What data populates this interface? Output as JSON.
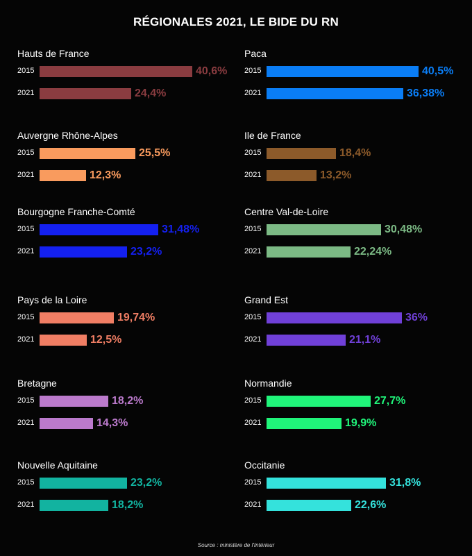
{
  "chart_data": {
    "type": "bar",
    "title": "RÉGIONALES 2021, LE BIDE DU RN",
    "source": "Source : ministère de l'Intérieur",
    "series_labels": [
      "2015",
      "2021"
    ],
    "xlim": [
      0,
      40.6
    ],
    "regions": [
      {
        "name": "Hauts de France",
        "color": "#8a3c40",
        "values": [
          40.6,
          24.4
        ],
        "labels": [
          "40,6%",
          "24,4%"
        ]
      },
      {
        "name": "Paca",
        "color": "#0a7df5",
        "values": [
          40.5,
          36.38
        ],
        "labels": [
          "40,5%",
          "36,38%"
        ]
      },
      {
        "name": "Auvergne Rhône-Alpes",
        "color": "#f99b5e",
        "values": [
          25.5,
          12.3
        ],
        "labels": [
          "25,5%",
          "12,3%"
        ]
      },
      {
        "name": "Ile de France",
        "color": "#8c5a2a",
        "values": [
          18.4,
          13.2
        ],
        "labels": [
          "18,4%",
          "13,2%"
        ]
      },
      {
        "name": "Bourgogne Franche-Comté",
        "color": "#1420f0",
        "values": [
          31.48,
          23.2
        ],
        "labels": [
          "31,48%",
          "23,2%"
        ]
      },
      {
        "name": "Centre Val-de-Loire",
        "color": "#7cba85",
        "values": [
          30.48,
          22.24
        ],
        "labels": [
          "30,48%",
          "22,24%"
        ]
      },
      {
        "name": "Pays de la Loire",
        "color": "#f07e64",
        "values": [
          19.74,
          12.5
        ],
        "labels": [
          "19,74%",
          "12,5%"
        ]
      },
      {
        "name": "Grand Est",
        "color": "#7040d8",
        "values": [
          36,
          21.1
        ],
        "labels": [
          "36%",
          "21,1%"
        ]
      },
      {
        "name": "Bretagne",
        "color": "#bb7acc",
        "values": [
          18.2,
          14.3
        ],
        "labels": [
          "18,2%",
          "14,3%"
        ]
      },
      {
        "name": "Normandie",
        "color": "#20f57a",
        "values": [
          27.7,
          19.9
        ],
        "labels": [
          "27,7%",
          "19,9%"
        ]
      },
      {
        "name": "Nouvelle Aquitaine",
        "color": "#12b3a0",
        "values": [
          23.2,
          18.2
        ],
        "labels": [
          "23,2%",
          "18,2%"
        ]
      },
      {
        "name": "Occitanie",
        "color": "#34e2dc",
        "values": [
          31.8,
          22.6
        ],
        "labels": [
          "31,8%",
          "22,6%"
        ]
      }
    ]
  }
}
